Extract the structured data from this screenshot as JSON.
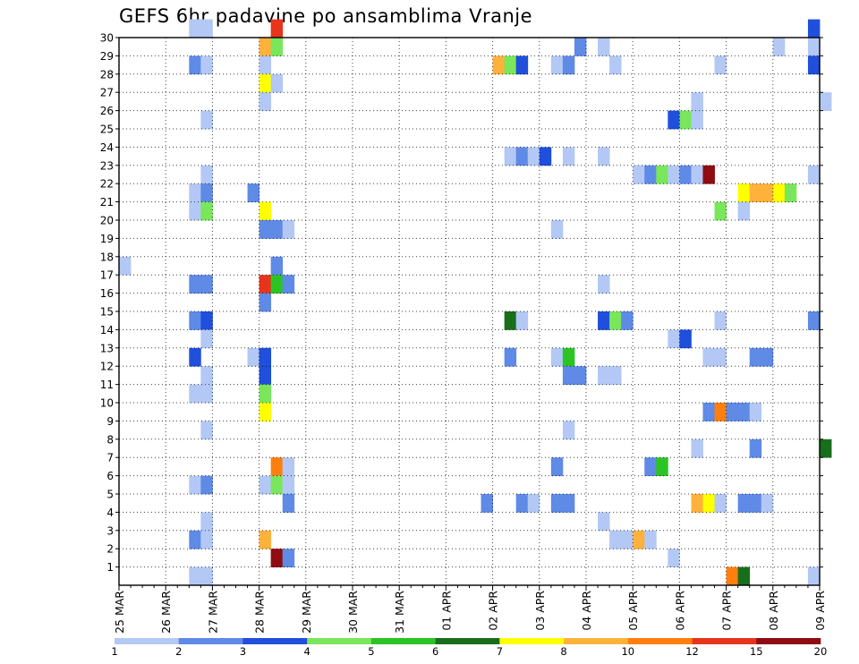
{
  "chart_data": {
    "type": "heatmap",
    "title": "GEFS 6hr padavine po ansamblima Vranje",
    "xlabel": "",
    "ylabel": "",
    "x_tick_labels": [
      "25 MAR",
      "26 MAR",
      "27 MAR",
      "28 MAR",
      "29 MAR",
      "30 MAR",
      "31 MAR",
      "01 APR",
      "02 APR",
      "03 APR",
      "04 APR",
      "05 APR",
      "06 APR",
      "07 APR",
      "08 APR",
      "09 APR"
    ],
    "y_tick_labels": [
      "1",
      "2",
      "3",
      "4",
      "5",
      "6",
      "7",
      "8",
      "9",
      "10",
      "11",
      "12",
      "13",
      "14",
      "15",
      "16",
      "17",
      "18",
      "19",
      "20",
      "21",
      "22",
      "23",
      "24",
      "25",
      "26",
      "27",
      "28",
      "29",
      "30"
    ],
    "x_range_steps": [
      0,
      60
    ],
    "y_range": [
      0,
      30
    ],
    "steps_per_day": 4,
    "grid": "dotted",
    "colorbar": {
      "labels": [
        "1",
        "2",
        "3",
        "4",
        "5",
        "6",
        "7",
        "8",
        "10",
        "12",
        "15",
        "20"
      ],
      "colors": [
        "#b3c8f5",
        "#5f8ae6",
        "#1f4fdb",
        "#7ae65c",
        "#2cc425",
        "#196e1b",
        "#ffff00",
        "#ffb23b",
        "#ff7f0e",
        "#e8341c",
        "#8e0c12"
      ]
    },
    "cells": [
      {
        "m": 30,
        "t": 6,
        "c": 0
      },
      {
        "m": 30,
        "t": 7,
        "c": 0
      },
      {
        "m": 30,
        "t": 13,
        "c": 9
      },
      {
        "m": 30,
        "t": 59,
        "c": 2
      },
      {
        "m": 29,
        "t": 12,
        "c": 7
      },
      {
        "m": 29,
        "t": 13,
        "c": 3
      },
      {
        "m": 29,
        "t": 39,
        "c": 1
      },
      {
        "m": 29,
        "t": 41,
        "c": 0
      },
      {
        "m": 29,
        "t": 56,
        "c": 0
      },
      {
        "m": 29,
        "t": 59,
        "c": 0
      },
      {
        "m": 28,
        "t": 6,
        "c": 1
      },
      {
        "m": 28,
        "t": 7,
        "c": 0
      },
      {
        "m": 28,
        "t": 12,
        "c": 0
      },
      {
        "m": 28,
        "t": 32,
        "c": 7
      },
      {
        "m": 28,
        "t": 33,
        "c": 3
      },
      {
        "m": 28,
        "t": 34,
        "c": 2
      },
      {
        "m": 28,
        "t": 37,
        "c": 0
      },
      {
        "m": 28,
        "t": 38,
        "c": 1
      },
      {
        "m": 28,
        "t": 42,
        "c": 0
      },
      {
        "m": 28,
        "t": 51,
        "c": 0
      },
      {
        "m": 28,
        "t": 59,
        "c": 2
      },
      {
        "m": 27,
        "t": 12,
        "c": 6
      },
      {
        "m": 27,
        "t": 13,
        "c": 0
      },
      {
        "m": 26,
        "t": 12,
        "c": 0
      },
      {
        "m": 26,
        "t": 49,
        "c": 0
      },
      {
        "m": 26,
        "t": 60,
        "c": 0
      },
      {
        "m": 25,
        "t": 7,
        "c": 0
      },
      {
        "m": 25,
        "t": 47,
        "c": 2
      },
      {
        "m": 25,
        "t": 48,
        "c": 3
      },
      {
        "m": 25,
        "t": 49,
        "c": 0
      },
      {
        "m": 23,
        "t": 33,
        "c": 0
      },
      {
        "m": 23,
        "t": 34,
        "c": 1
      },
      {
        "m": 23,
        "t": 35,
        "c": 0
      },
      {
        "m": 23,
        "t": 36,
        "c": 2
      },
      {
        "m": 23,
        "t": 38,
        "c": 0
      },
      {
        "m": 23,
        "t": 41,
        "c": 0
      },
      {
        "m": 22,
        "t": 7,
        "c": 0
      },
      {
        "m": 22,
        "t": 44,
        "c": 0
      },
      {
        "m": 22,
        "t": 45,
        "c": 1
      },
      {
        "m": 22,
        "t": 46,
        "c": 3
      },
      {
        "m": 22,
        "t": 47,
        "c": 0
      },
      {
        "m": 22,
        "t": 48,
        "c": 1
      },
      {
        "m": 22,
        "t": 49,
        "c": 0
      },
      {
        "m": 22,
        "t": 50,
        "c": 10
      },
      {
        "m": 22,
        "t": 59,
        "c": 0
      },
      {
        "m": 21,
        "t": 6,
        "c": 0
      },
      {
        "m": 21,
        "t": 7,
        "c": 1
      },
      {
        "m": 21,
        "t": 11,
        "c": 1
      },
      {
        "m": 21,
        "t": 53,
        "c": 6
      },
      {
        "m": 21,
        "t": 54,
        "c": 7
      },
      {
        "m": 21,
        "t": 55,
        "c": 7
      },
      {
        "m": 21,
        "t": 56,
        "c": 6
      },
      {
        "m": 21,
        "t": 57,
        "c": 3
      },
      {
        "m": 20,
        "t": 6,
        "c": 0
      },
      {
        "m": 20,
        "t": 7,
        "c": 3
      },
      {
        "m": 20,
        "t": 12,
        "c": 6
      },
      {
        "m": 20,
        "t": 51,
        "c": 3
      },
      {
        "m": 20,
        "t": 53,
        "c": 0
      },
      {
        "m": 19,
        "t": 12,
        "c": 1
      },
      {
        "m": 19,
        "t": 13,
        "c": 1
      },
      {
        "m": 19,
        "t": 14,
        "c": 0
      },
      {
        "m": 19,
        "t": 37,
        "c": 0
      },
      {
        "m": 17,
        "t": 0,
        "c": 0
      },
      {
        "m": 17,
        "t": 13,
        "c": 1
      },
      {
        "m": 16,
        "t": 6,
        "c": 1
      },
      {
        "m": 16,
        "t": 7,
        "c": 1
      },
      {
        "m": 16,
        "t": 12,
        "c": 9
      },
      {
        "m": 16,
        "t": 13,
        "c": 4
      },
      {
        "m": 16,
        "t": 14,
        "c": 1
      },
      {
        "m": 16,
        "t": 41,
        "c": 0
      },
      {
        "m": 15,
        "t": 12,
        "c": 1
      },
      {
        "m": 14,
        "t": 6,
        "c": 1
      },
      {
        "m": 14,
        "t": 7,
        "c": 2
      },
      {
        "m": 14,
        "t": 33,
        "c": 5
      },
      {
        "m": 14,
        "t": 34,
        "c": 0
      },
      {
        "m": 14,
        "t": 41,
        "c": 2
      },
      {
        "m": 14,
        "t": 42,
        "c": 3
      },
      {
        "m": 14,
        "t": 43,
        "c": 1
      },
      {
        "m": 14,
        "t": 51,
        "c": 0
      },
      {
        "m": 14,
        "t": 59,
        "c": 1
      },
      {
        "m": 13,
        "t": 7,
        "c": 0
      },
      {
        "m": 13,
        "t": 47,
        "c": 0
      },
      {
        "m": 13,
        "t": 48,
        "c": 2
      },
      {
        "m": 12,
        "t": 6,
        "c": 2
      },
      {
        "m": 12,
        "t": 11,
        "c": 0
      },
      {
        "m": 12,
        "t": 12,
        "c": 2
      },
      {
        "m": 12,
        "t": 33,
        "c": 1
      },
      {
        "m": 12,
        "t": 37,
        "c": 0
      },
      {
        "m": 12,
        "t": 38,
        "c": 4
      },
      {
        "m": 12,
        "t": 50,
        "c": 0
      },
      {
        "m": 12,
        "t": 51,
        "c": 0
      },
      {
        "m": 12,
        "t": 54,
        "c": 1
      },
      {
        "m": 12,
        "t": 55,
        "c": 1
      },
      {
        "m": 11,
        "t": 7,
        "c": 0
      },
      {
        "m": 11,
        "t": 12,
        "c": 2
      },
      {
        "m": 11,
        "t": 38,
        "c": 1
      },
      {
        "m": 11,
        "t": 39,
        "c": 1
      },
      {
        "m": 11,
        "t": 41,
        "c": 0
      },
      {
        "m": 11,
        "t": 42,
        "c": 0
      },
      {
        "m": 10,
        "t": 6,
        "c": 0
      },
      {
        "m": 10,
        "t": 7,
        "c": 0
      },
      {
        "m": 10,
        "t": 12,
        "c": 3
      },
      {
        "m": 9,
        "t": 12,
        "c": 6
      },
      {
        "m": 9,
        "t": 50,
        "c": 1
      },
      {
        "m": 9,
        "t": 51,
        "c": 8
      },
      {
        "m": 9,
        "t": 52,
        "c": 1
      },
      {
        "m": 9,
        "t": 53,
        "c": 1
      },
      {
        "m": 9,
        "t": 54,
        "c": 0
      },
      {
        "m": 8,
        "t": 7,
        "c": 0
      },
      {
        "m": 8,
        "t": 38,
        "c": 0
      },
      {
        "m": 7,
        "t": 49,
        "c": 0
      },
      {
        "m": 7,
        "t": 54,
        "c": 1
      },
      {
        "m": 7,
        "t": 60,
        "c": 5
      },
      {
        "m": 6,
        "t": 13,
        "c": 8
      },
      {
        "m": 6,
        "t": 14,
        "c": 0
      },
      {
        "m": 6,
        "t": 37,
        "c": 1
      },
      {
        "m": 6,
        "t": 45,
        "c": 1
      },
      {
        "m": 6,
        "t": 46,
        "c": 4
      },
      {
        "m": 5,
        "t": 6,
        "c": 0
      },
      {
        "m": 5,
        "t": 7,
        "c": 1
      },
      {
        "m": 5,
        "t": 12,
        "c": 0
      },
      {
        "m": 5,
        "t": 13,
        "c": 3
      },
      {
        "m": 5,
        "t": 14,
        "c": 0
      },
      {
        "m": 4,
        "t": 14,
        "c": 1
      },
      {
        "m": 4,
        "t": 31,
        "c": 1
      },
      {
        "m": 4,
        "t": 34,
        "c": 1
      },
      {
        "m": 4,
        "t": 35,
        "c": 0
      },
      {
        "m": 4,
        "t": 37,
        "c": 1
      },
      {
        "m": 4,
        "t": 38,
        "c": 1
      },
      {
        "m": 4,
        "t": 49,
        "c": 7
      },
      {
        "m": 4,
        "t": 50,
        "c": 6
      },
      {
        "m": 4,
        "t": 51,
        "c": 0
      },
      {
        "m": 4,
        "t": 53,
        "c": 1
      },
      {
        "m": 4,
        "t": 54,
        "c": 1
      },
      {
        "m": 4,
        "t": 55,
        "c": 0
      },
      {
        "m": 3,
        "t": 7,
        "c": 0
      },
      {
        "m": 3,
        "t": 41,
        "c": 0
      },
      {
        "m": 2,
        "t": 6,
        "c": 1
      },
      {
        "m": 2,
        "t": 7,
        "c": 0
      },
      {
        "m": 2,
        "t": 12,
        "c": 7
      },
      {
        "m": 2,
        "t": 42,
        "c": 0
      },
      {
        "m": 2,
        "t": 43,
        "c": 0
      },
      {
        "m": 2,
        "t": 44,
        "c": 7
      },
      {
        "m": 2,
        "t": 45,
        "c": 0
      },
      {
        "m": 1,
        "t": 13,
        "c": 10
      },
      {
        "m": 1,
        "t": 14,
        "c": 1
      },
      {
        "m": 1,
        "t": 47,
        "c": 0
      },
      {
        "m": 0,
        "t": 6,
        "c": 0
      },
      {
        "m": 0,
        "t": 7,
        "c": 0
      },
      {
        "m": 0,
        "t": 52,
        "c": 8
      },
      {
        "m": 0,
        "t": 53,
        "c": 5
      },
      {
        "m": 0,
        "t": 59,
        "c": 0
      }
    ]
  }
}
